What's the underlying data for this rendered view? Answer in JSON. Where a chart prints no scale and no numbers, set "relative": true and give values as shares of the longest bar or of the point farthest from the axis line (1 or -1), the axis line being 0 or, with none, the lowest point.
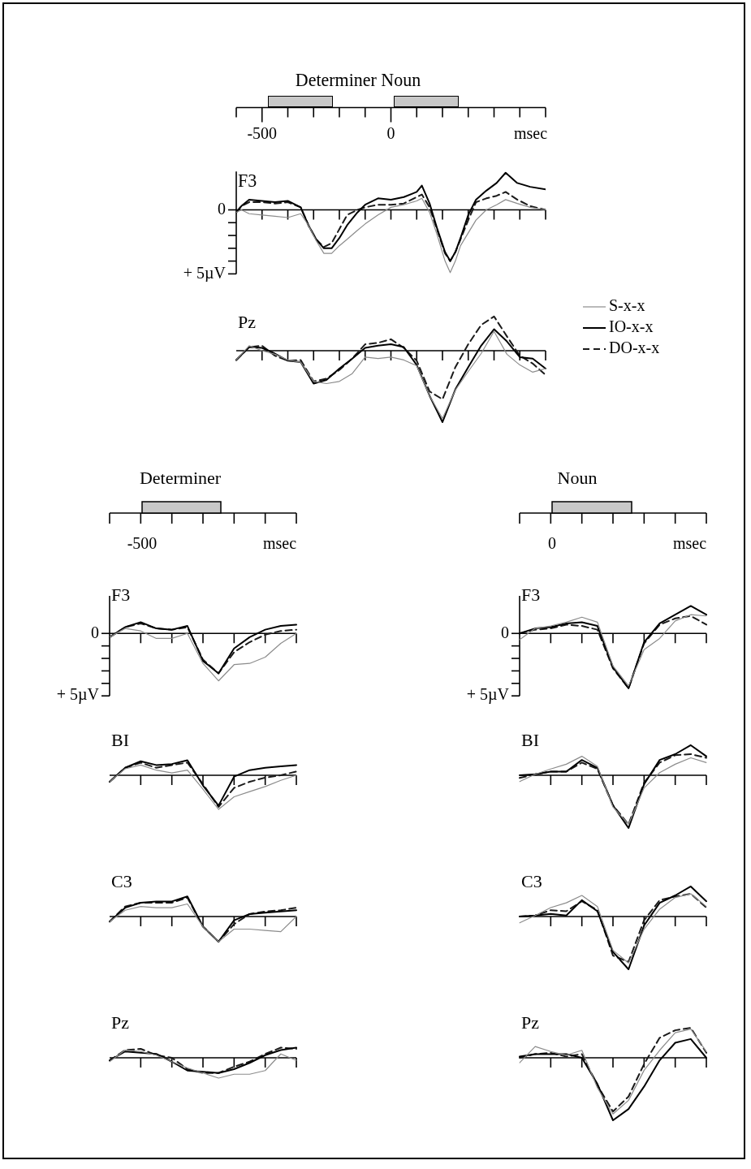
{
  "chart_data": [
    {
      "type": "line",
      "title": "F3",
      "annotations": [
        "Determiner Noun"
      ],
      "xlim": [
        -600,
        600
      ],
      "xticks": [
        {
          "value": -600,
          "label": null
        },
        -500,
        {
          "value": -400,
          "label": null
        },
        {
          "value": -300,
          "label": null
        },
        {
          "value": -200,
          "label": null
        },
        {
          "value": -100,
          "label": null
        },
        0,
        {
          "value": 100,
          "label": null
        },
        {
          "value": 200,
          "label": null
        },
        {
          "value": 300,
          "label": null
        },
        {
          "value": 400,
          "label": null
        },
        {
          "value": 500,
          "label": null
        },
        {
          "value": 600,
          "label": null
        }
      ],
      "xlabel": "msec",
      "ylim": [
        5,
        -3
      ],
      "yticks": [
        {
          "value": 0,
          "label": "0"
        },
        {
          "value": 1,
          "label": null
        },
        {
          "value": 2,
          "label": null
        },
        {
          "value": 3,
          "label": null
        },
        {
          "value": 4,
          "label": null
        },
        {
          "value": 5,
          "label": "+ 5µV"
        }
      ],
      "x": [
        -600,
        -580,
        -550,
        -500,
        -450,
        -400,
        -350,
        -320,
        -290,
        -260,
        -230,
        -200,
        -170,
        -130,
        -100,
        -50,
        0,
        50,
        100,
        120,
        150,
        180,
        210,
        230,
        250,
        270,
        300,
        330,
        370,
        410,
        445,
        490,
        540,
        600
      ],
      "series": [
        {
          "color": "#8c8c8c",
          "values": [
            0.2,
            0.0,
            0.3,
            0.4,
            0.5,
            0.6,
            0.3,
            1.2,
            2.4,
            3.4,
            3.4,
            2.8,
            2.3,
            1.6,
            1.1,
            0.4,
            -0.2,
            -0.4,
            -0.7,
            -0.9,
            0.2,
            2.0,
            4.0,
            4.9,
            4.0,
            2.8,
            1.8,
            0.8,
            0.0,
            -0.4,
            -0.8,
            -0.5,
            -0.2,
            0.0
          ]
        },
        {
          "color": "#000000",
          "values": [
            0.2,
            -0.3,
            -0.8,
            -0.7,
            -0.6,
            -0.7,
            -0.2,
            1.2,
            2.3,
            3.0,
            3.0,
            2.2,
            1.2,
            0.2,
            -0.4,
            -0.9,
            -0.8,
            -1.0,
            -1.4,
            -1.9,
            -0.5,
            1.5,
            3.3,
            4.0,
            3.3,
            2.2,
            0.4,
            -0.8,
            -1.5,
            -2.1,
            -2.9,
            -2.1,
            -1.8,
            -1.6
          ]
        },
        {
          "color": "#1a1a1a",
          "line_style": "dashed",
          "values": [
            0.2,
            -0.3,
            -0.6,
            -0.6,
            -0.5,
            -0.6,
            -0.2,
            1.2,
            2.3,
            2.9,
            2.6,
            1.5,
            0.4,
            0.0,
            -0.2,
            -0.4,
            -0.4,
            -0.5,
            -1.0,
            -1.2,
            -0.2,
            1.6,
            3.4,
            4.0,
            3.3,
            2.3,
            0.8,
            -0.6,
            -0.9,
            -1.1,
            -1.4,
            -0.8,
            -0.3,
            0.0
          ]
        }
      ]
    },
    {
      "type": "line",
      "title": "Pz",
      "relative": true,
      "legend": "right",
      "categories": [
        null,
        null,
        null,
        null,
        null,
        null,
        null,
        null,
        null,
        null,
        null,
        null,
        null,
        null,
        null,
        null,
        null,
        null,
        null,
        null,
        null,
        null,
        null,
        null,
        null
      ],
      "series": [
        {
          "name": "S-x-x",
          "color": "#8c8c8c",
          "values": [
            -0.13,
            0.07,
            0,
            -0.05,
            -0.13,
            -0.16,
            -0.43,
            -0.46,
            -0.43,
            -0.32,
            -0.09,
            -0.11,
            -0.09,
            -0.13,
            -0.21,
            -0.63,
            -0.95,
            -0.55,
            -0.29,
            -0.04,
            0.27,
            -0.05,
            -0.2,
            -0.3,
            -0.25
          ]
        },
        {
          "name": "IO-x-x",
          "color": "#000000",
          "values": [
            -0.13,
            0.05,
            0.04,
            -0.04,
            -0.14,
            -0.16,
            -0.46,
            -0.41,
            -0.25,
            -0.11,
            0.04,
            0.07,
            0.09,
            0.05,
            -0.2,
            -0.63,
            -1,
            -0.54,
            -0.23,
            0.07,
            0.3,
            0.13,
            -0.09,
            -0.11,
            -0.25
          ]
        },
        {
          "name": "DO-x-x",
          "color": "#1a1a1a",
          "line_style": "dashed",
          "values": [
            -0.13,
            0.05,
            0.07,
            -0.07,
            -0.14,
            -0.13,
            -0.43,
            -0.39,
            -0.27,
            -0.11,
            0.09,
            0.11,
            0.16,
            0.04,
            -0.14,
            -0.57,
            -0.68,
            -0.23,
            0.09,
            0.36,
            0.48,
            0.2,
            -0.07,
            -0.18,
            -0.34
          ]
        }
      ]
    },
    {
      "type": "line",
      "title": "F3",
      "annotations": [
        "Determiner",
        "-500",
        "msec"
      ],
      "categories": [
        null,
        null,
        null,
        null,
        null,
        null,
        null,
        null,
        null,
        null,
        null,
        null,
        null
      ],
      "ylim": [
        5,
        -3
      ],
      "yticks": [
        {
          "value": 0,
          "label": "0"
        },
        {
          "value": 1,
          "label": null
        },
        {
          "value": 2,
          "label": null
        },
        {
          "value": 3,
          "label": null
        },
        {
          "value": 4,
          "label": null
        },
        {
          "value": 5,
          "label": "+ 5µV"
        }
      ],
      "series": [
        {
          "color": "#8c8c8c",
          "values": [
            0.3,
            -0.4,
            -0.2,
            0.4,
            0.4,
            0,
            2.4,
            3.8,
            2.5,
            2.4,
            1.9,
            0.8,
            0
          ]
        },
        {
          "color": "#000000",
          "values": [
            0.3,
            -0.5,
            -0.9,
            -0.4,
            -0.3,
            -0.6,
            2.2,
            3.2,
            1.2,
            0.3,
            -0.3,
            -0.6,
            -0.7
          ]
        },
        {
          "color": "#1a1a1a",
          "line_style": "dashed",
          "values": [
            0.3,
            -0.5,
            -0.8,
            -0.4,
            -0.3,
            -0.5,
            2.1,
            3.2,
            1.5,
            0.7,
            0.1,
            -0.2,
            -0.3
          ]
        }
      ]
    },
    {
      "type": "line",
      "title": "F3",
      "annotations": [
        "Noun",
        "0",
        "msec"
      ],
      "categories": [
        null,
        null,
        null,
        null,
        null,
        null,
        null,
        null,
        null,
        null,
        null,
        null,
        null
      ],
      "ylim": [
        5,
        -3
      ],
      "yticks": [
        {
          "value": 0,
          "label": "0"
        },
        {
          "value": 1,
          "label": null
        },
        {
          "value": 2,
          "label": null
        },
        {
          "value": 3,
          "label": null
        },
        {
          "value": 4,
          "label": null
        },
        {
          "value": 5,
          "label": "+ 5µV"
        }
      ],
      "series": [
        {
          "color": "#8c8c8c",
          "values": [
            0.5,
            -0.4,
            -0.6,
            -0.9,
            -1.3,
            -0.9,
            2.6,
            4.2,
            1.3,
            0.4,
            -1.0,
            -1.5,
            -1.4
          ]
        },
        {
          "color": "#000000",
          "values": [
            0,
            -0.4,
            -0.5,
            -0.8,
            -0.9,
            -0.6,
            2.7,
            4.4,
            0.7,
            -0.8,
            -1.5,
            -2.2,
            -1.5
          ]
        },
        {
          "color": "#1a1a1a",
          "line_style": "dashed",
          "values": [
            0,
            -0.3,
            -0.4,
            -0.7,
            -0.6,
            -0.3,
            2.8,
            4.4,
            0.8,
            -0.7,
            -1.2,
            -1.4,
            -0.7
          ]
        }
      ]
    },
    {
      "type": "line",
      "title": "BI",
      "relative": true,
      "categories": [
        null,
        null,
        null,
        null,
        null,
        null,
        null,
        null,
        null,
        null,
        null,
        null,
        null
      ],
      "series": [
        {
          "color": "#8c8c8c",
          "values": [
            -0.19,
            0.19,
            0.3,
            0.15,
            0.07,
            0.15,
            -0.41,
            -1,
            -0.63,
            -0.48,
            -0.33,
            -0.15,
            0
          ]
        },
        {
          "color": "#000000",
          "values": [
            -0.19,
            0.22,
            0.41,
            0.3,
            0.33,
            0.44,
            -0.3,
            -0.89,
            -0.04,
            0.15,
            0.22,
            0.26,
            0.3
          ]
        },
        {
          "color": "#1a1a1a",
          "line_style": "dashed",
          "values": [
            -0.19,
            0.22,
            0.37,
            0.22,
            0.3,
            0.37,
            -0.26,
            -0.93,
            -0.37,
            -0.19,
            -0.07,
            0,
            0.11
          ]
        }
      ]
    },
    {
      "type": "line",
      "title": "BI",
      "relative": true,
      "categories": [
        null,
        null,
        null,
        null,
        null,
        null,
        null,
        null,
        null,
        null,
        null,
        null,
        null
      ],
      "series": [
        {
          "color": "#8c8c8c",
          "values": [
            -0.12,
            0.02,
            0.12,
            0.21,
            0.36,
            0.17,
            -0.6,
            -0.93,
            -0.24,
            0.05,
            0.21,
            0.33,
            0.24
          ]
        },
        {
          "color": "#000000",
          "values": [
            0,
            0.02,
            0.07,
            0.07,
            0.29,
            0.14,
            -0.57,
            -1,
            -0.17,
            0.29,
            0.4,
            0.57,
            0.36
          ]
        },
        {
          "color": "#1a1a1a",
          "line_style": "dashed",
          "values": [
            -0.05,
            0.02,
            0.07,
            0.07,
            0.24,
            0.12,
            -0.57,
            -0.93,
            -0.14,
            0.24,
            0.38,
            0.4,
            0.33
          ]
        }
      ]
    },
    {
      "type": "line",
      "title": "C3",
      "relative": true,
      "categories": [
        null,
        null,
        null,
        null,
        null,
        null,
        null,
        null,
        null,
        null,
        null,
        null,
        null
      ],
      "series": [
        {
          "color": "#8c8c8c",
          "values": [
            -0.2,
            0.25,
            0.4,
            0.35,
            0.35,
            0.5,
            -0.4,
            -1,
            -0.5,
            -0.5,
            -0.55,
            -0.6,
            0
          ]
        },
        {
          "color": "#000000",
          "values": [
            -0.2,
            0.35,
            0.55,
            0.6,
            0.6,
            0.8,
            -0.4,
            -1,
            -0.15,
            0.1,
            0.15,
            0.2,
            0.25
          ]
        },
        {
          "color": "#1a1a1a",
          "line_style": "dashed",
          "values": [
            -0.2,
            0.4,
            0.55,
            0.55,
            0.55,
            0.75,
            -0.4,
            -1,
            -0.3,
            0.1,
            0.2,
            0.25,
            0.35
          ]
        }
      ]
    },
    {
      "type": "line",
      "title": "C3",
      "relative": true,
      "categories": [
        null,
        null,
        null,
        null,
        null,
        null,
        null,
        null,
        null,
        null,
        null,
        null,
        null
      ],
      "series": [
        {
          "color": "#8c8c8c",
          "values": [
            -0.12,
            0.02,
            0.17,
            0.26,
            0.4,
            0.19,
            -0.64,
            -0.88,
            -0.24,
            0.14,
            0.36,
            0.43,
            0.19
          ]
        },
        {
          "color": "#000000",
          "values": [
            0,
            0.02,
            0.05,
            0.02,
            0.31,
            0.1,
            -0.67,
            -1,
            -0.17,
            0.26,
            0.4,
            0.57,
            0.29
          ]
        },
        {
          "color": "#1a1a1a",
          "line_style": "dashed",
          "values": [
            0,
            0.02,
            0.12,
            0.1,
            0.29,
            0.12,
            -0.74,
            -0.86,
            -0.07,
            0.31,
            0.38,
            0.43,
            0.17
          ]
        }
      ]
    },
    {
      "type": "line",
      "title": "Pz",
      "relative": true,
      "categories": [
        null,
        null,
        null,
        null,
        null,
        null,
        null,
        null,
        null,
        null,
        null,
        null,
        null
      ],
      "series": [
        {
          "color": "#8c8c8c",
          "values": [
            -0.19,
            0.38,
            0.31,
            0.13,
            -0.19,
            -0.5,
            -0.75,
            -1,
            -0.81,
            -0.81,
            -0.63,
            0.19,
            -0.13
          ]
        },
        {
          "color": "#000000",
          "values": [
            -0.13,
            0.31,
            0.25,
            0.19,
            -0.19,
            -0.63,
            -0.69,
            -0.75,
            -0.56,
            -0.25,
            0.13,
            0.38,
            0.5
          ]
        },
        {
          "color": "#1a1a1a",
          "line_style": "dashed",
          "values": [
            -0.13,
            0.38,
            0.44,
            0.13,
            0,
            -0.56,
            -0.75,
            -0.75,
            -0.44,
            -0.19,
            0.19,
            0.5,
            0.44
          ]
        }
      ]
    },
    {
      "type": "line",
      "title": "Pz",
      "relative": true,
      "categories": [
        null,
        null,
        null,
        null,
        null,
        null,
        null,
        null,
        null,
        null,
        null,
        null,
        null
      ],
      "series": [
        {
          "color": "#8c8c8c",
          "values": [
            -0.08,
            0.18,
            0.1,
            0.04,
            0.12,
            -0.48,
            -0.9,
            -0.68,
            -0.2,
            0.12,
            0.4,
            0.46,
            0.1
          ]
        },
        {
          "color": "#000000",
          "values": [
            0.02,
            0.06,
            0.06,
            0.06,
            0,
            -0.42,
            -1,
            -0.82,
            -0.46,
            -0.04,
            0.24,
            0.3,
            0
          ]
        },
        {
          "color": "#1a1a1a",
          "line_style": "dashed",
          "values": [
            0,
            0.06,
            0.08,
            0.02,
            0.06,
            -0.44,
            -0.86,
            -0.62,
            -0.1,
            0.32,
            0.44,
            0.48,
            0.08
          ]
        }
      ]
    }
  ]
}
